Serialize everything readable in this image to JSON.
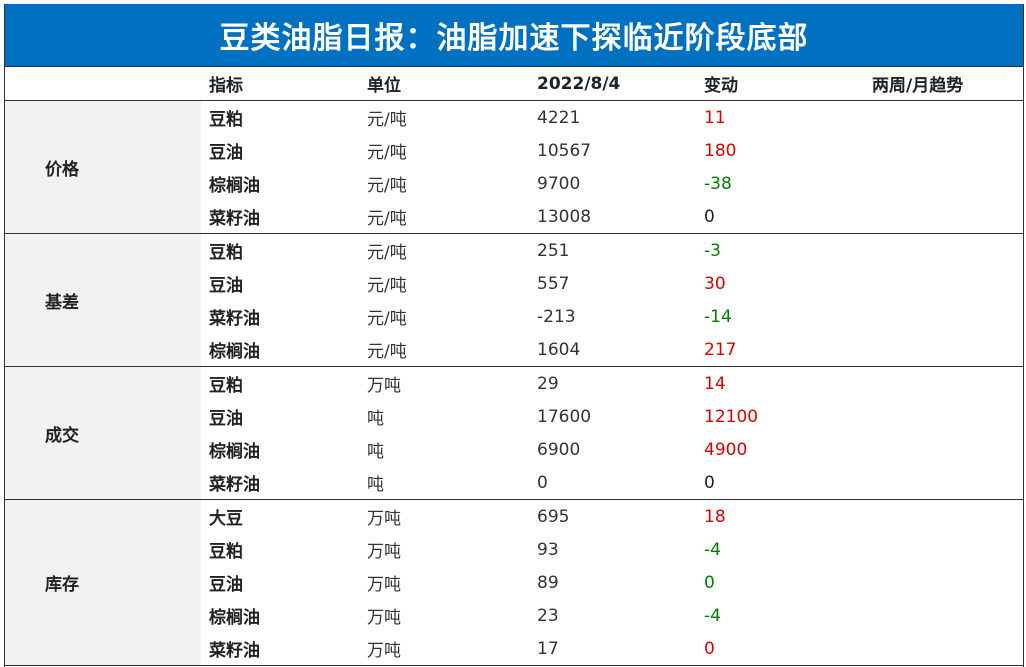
{
  "title": "豆类油脂日报：油脂加速下探临近阶段底部",
  "headers": {
    "indicator": "指标",
    "unit": "单位",
    "date": "2022/8/4",
    "change": "变动",
    "trend": "两周/月趋势"
  },
  "groups": [
    {
      "category": "价格",
      "rows": [
        {
          "name": "豆粕",
          "unit": "元/吨",
          "value": "4221",
          "change": "11",
          "dir": "red"
        },
        {
          "name": "豆油",
          "unit": "元/吨",
          "value": "10567",
          "change": "180",
          "dir": "red"
        },
        {
          "name": "棕榈油",
          "unit": "元/吨",
          "value": "9700",
          "change": "-38",
          "dir": "green"
        },
        {
          "name": "菜籽油",
          "unit": "元/吨",
          "value": "13008",
          "change": "0",
          "dir": "black"
        }
      ]
    },
    {
      "category": "基差",
      "rows": [
        {
          "name": "豆粕",
          "unit": "元/吨",
          "value": "251",
          "change": "-3",
          "dir": "green"
        },
        {
          "name": "豆油",
          "unit": "元/吨",
          "value": "557",
          "change": "30",
          "dir": "red"
        },
        {
          "name": "菜籽油",
          "unit": "元/吨",
          "value": "-213",
          "change": "-14",
          "dir": "green"
        },
        {
          "name": "棕榈油",
          "unit": "元/吨",
          "value": "1604",
          "change": "217",
          "dir": "red"
        }
      ]
    },
    {
      "category": "成交",
      "rows": [
        {
          "name": "豆粕",
          "unit": "万吨",
          "value": "29",
          "change": "14",
          "dir": "red"
        },
        {
          "name": "豆油",
          "unit": "吨",
          "value": "17600",
          "change": "12100",
          "dir": "red"
        },
        {
          "name": "棕榈油",
          "unit": "吨",
          "value": "6900",
          "change": "4900",
          "dir": "red"
        },
        {
          "name": "菜籽油",
          "unit": "吨",
          "value": "0",
          "change": "0",
          "dir": "black"
        }
      ]
    },
    {
      "category": "库存",
      "rows": [
        {
          "name": "大豆",
          "unit": "万吨",
          "value": "695",
          "change": "18",
          "dir": "red"
        },
        {
          "name": "豆粕",
          "unit": "万吨",
          "value": "93",
          "change": "-4",
          "dir": "green"
        },
        {
          "name": "豆油",
          "unit": "万吨",
          "value": "89",
          "change": "0",
          "dir": "green"
        },
        {
          "name": "棕榈油",
          "unit": "万吨",
          "value": "23",
          "change": "-4",
          "dir": "green"
        },
        {
          "name": "菜籽油",
          "unit": "万吨",
          "value": "17",
          "change": "0",
          "dir": "red"
        }
      ]
    }
  ],
  "colors": {
    "title_bg": "#0070c0",
    "up": "#e00000",
    "down": "#008000",
    "category_bg": "#f2f2f2"
  }
}
